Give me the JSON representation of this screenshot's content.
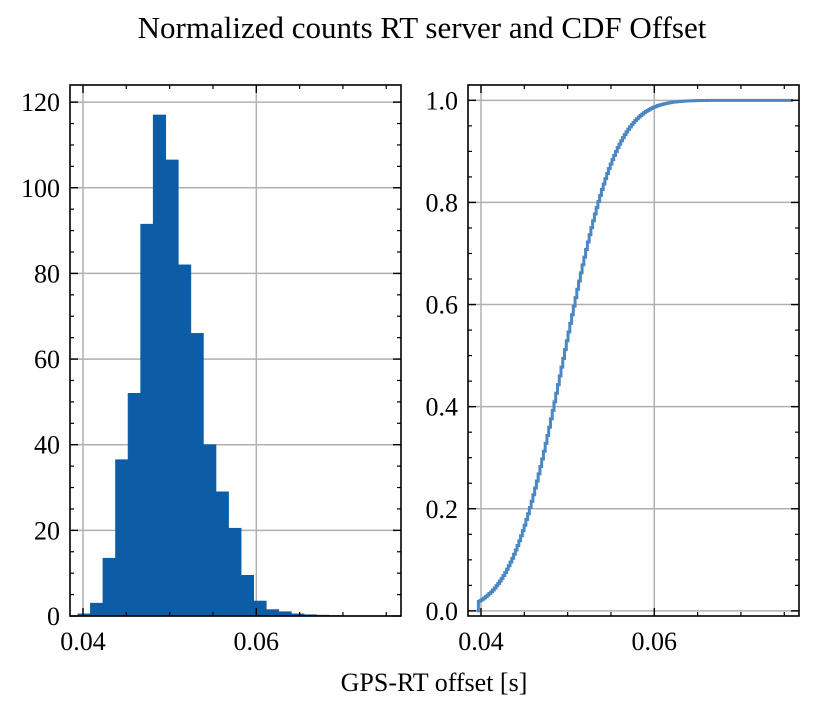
{
  "figure": {
    "title": "Normalized counts RT server and CDF Offset",
    "xlabel": "GPS-RT offset [s]"
  },
  "chart_data": [
    {
      "type": "bar",
      "subtype": "histogram",
      "xlim": [
        0.0385,
        0.0767
      ],
      "ylim": [
        0,
        124
      ],
      "xticks": [
        0.04,
        0.06
      ],
      "xtick_labels": [
        "0.04",
        "0.06"
      ],
      "yticks": [
        0,
        20,
        40,
        60,
        80,
        100,
        120
      ],
      "ytick_labels": [
        "0",
        "20",
        "40",
        "60",
        "80",
        "100",
        "120"
      ],
      "grid": true,
      "color": "#0c5da5",
      "bin_edges": [
        0.0394,
        0.04085,
        0.0423,
        0.04375,
        0.0452,
        0.04665,
        0.0481,
        0.04955,
        0.051,
        0.05245,
        0.0539,
        0.05535,
        0.0568,
        0.05825,
        0.0597,
        0.06115,
        0.0626,
        0.06405,
        0.0655,
        0.06695,
        0.0684,
        0.06985
      ],
      "values": [
        0.5,
        3,
        13.5,
        36.5,
        52,
        91.5,
        117,
        106.5,
        82,
        66,
        40,
        29,
        20.5,
        9.5,
        3.5,
        1.5,
        1,
        0.5,
        0.3,
        0.2,
        0.1
      ]
    },
    {
      "type": "line",
      "subtype": "step-cdf",
      "xlim": [
        0.0385,
        0.0767
      ],
      "ylim": [
        -0.01,
        1.03
      ],
      "xticks": [
        0.04,
        0.06
      ],
      "xtick_labels": [
        "0.04",
        "0.06"
      ],
      "yticks": [
        0,
        0.2,
        0.4,
        0.6,
        0.8,
        1.0
      ],
      "ytick_labels": [
        "0.0",
        "0.2",
        "0.4",
        "0.6",
        "0.8",
        "1.0"
      ],
      "grid": true,
      "color": "#4a87c3",
      "x_range": [
        0.0395,
        0.076
      ],
      "mean": 0.0495,
      "std": 0.0047
    }
  ]
}
